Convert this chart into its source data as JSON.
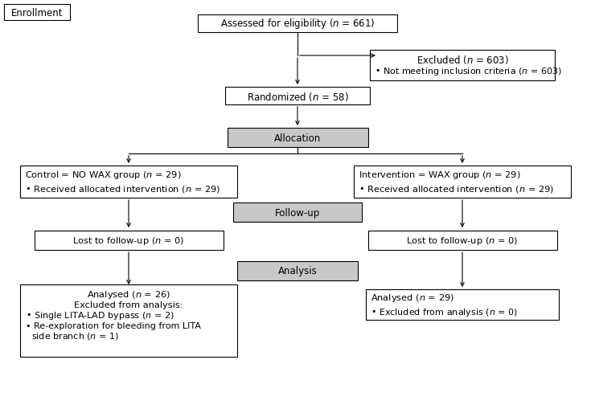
{
  "bg_color": "#ffffff",
  "gray_color": "#c8c8c8",
  "enrollment_label": "Enrollment",
  "top_box_text": "Assessed for eligibility ($n$ = 661)",
  "excluded_line1": "Excluded ($n$ = 603)",
  "excluded_line2": "• Not meeting inclusion criteria ($n$ = 603)",
  "randomized_text": "Randomized ($n$ = 58)",
  "allocation_text": "Allocation",
  "left_alloc_line1": "Control = NO WAX group ($n$ = 29)",
  "left_alloc_line2": "• Received allocated intervention ($n$ = 29)",
  "right_alloc_line1": "Intervention = WAX group ($n$ = 29)",
  "right_alloc_line2": "• Received allocated intervention ($n$ = 29)",
  "followup_text": "Follow-up",
  "left_follow_text": "Lost to follow-up ($n$ = 0)",
  "right_follow_text": "Lost to follow-up ($n$ = 0)",
  "analysis_text": "Analysis",
  "left_anal_line1": "Analysed ($n$ = 26)",
  "left_anal_line2": "Excluded from analysis:",
  "left_anal_line3": "• Single LITA-LAD bypass ($n$ = 2)",
  "left_anal_line4": "• Re-exploration for bleeding from LITA",
  "left_anal_line5": "  side branch ($n$ = 1)",
  "right_anal_line1": "Analysed ($n$ = 29)",
  "right_anal_line2": "• Excluded from analysis ($n$ = 0)"
}
